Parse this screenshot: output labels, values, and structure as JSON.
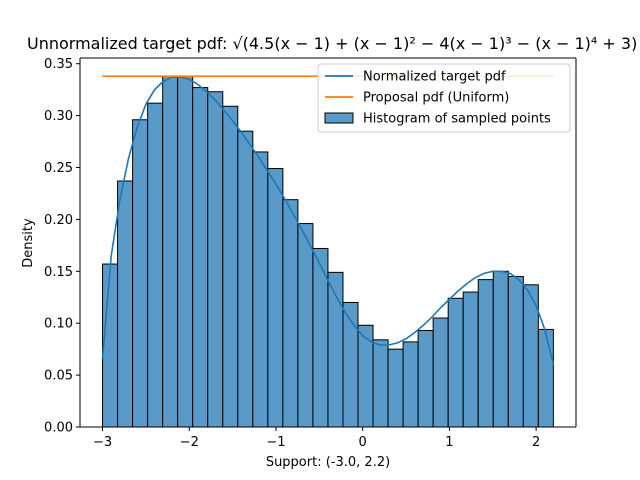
{
  "chart_data": {
    "type": "bar",
    "title_prefix": "Unnormalized target pdf: ",
    "title_formula": "√(4.5(x − 1) + (x − 1)² − 4(x − 1)³ − (x − 1)⁴ + 3)",
    "xlabel": "Support: (-3.0, 2.2)",
    "ylabel": "Density",
    "xlim": [
      -3.26,
      2.46
    ],
    "ylim": [
      0.0,
      0.3555
    ],
    "xticks": [
      -3,
      -2,
      -1,
      0,
      1,
      2
    ],
    "xtick_labels": [
      "−3",
      "−2",
      "−1",
      "0",
      "1",
      "2"
    ],
    "yticks": [
      0.0,
      0.05,
      0.1,
      0.15,
      0.2,
      0.25,
      0.3,
      0.35
    ],
    "ytick_labels": [
      "0.00",
      "0.05",
      "0.10",
      "0.15",
      "0.20",
      "0.25",
      "0.30",
      "0.35"
    ],
    "grid": false,
    "legend_position": "top-right",
    "histogram": {
      "name": "Histogram of sampled points",
      "color": "#5a9ac9",
      "edge_color": "#000000",
      "bin_start": -3.0,
      "bin_width": 0.1733,
      "values": [
        0.157,
        0.237,
        0.296,
        0.312,
        0.338,
        0.338,
        0.327,
        0.323,
        0.309,
        0.285,
        0.265,
        0.249,
        0.219,
        0.196,
        0.172,
        0.149,
        0.12,
        0.098,
        0.084,
        0.075,
        0.082,
        0.093,
        0.105,
        0.124,
        0.13,
        0.142,
        0.15,
        0.145,
        0.137,
        0.094
      ]
    },
    "series": [
      {
        "name": "Normalized target pdf",
        "type": "line",
        "color": "#1f77b4",
        "x": [
          -3.0,
          -2.9,
          -2.8,
          -2.7,
          -2.6,
          -2.5,
          -2.4,
          -2.3,
          -2.2,
          -2.1,
          -2.0,
          -1.9,
          -1.8,
          -1.7,
          -1.6,
          -1.5,
          -1.4,
          -1.3,
          -1.2,
          -1.1,
          -1.0,
          -0.9,
          -0.8,
          -0.7,
          -0.6,
          -0.5,
          -0.4,
          -0.3,
          -0.2,
          -0.1,
          0.0,
          0.1,
          0.2,
          0.3,
          0.4,
          0.5,
          0.6,
          0.7,
          0.8,
          0.9,
          1.0,
          1.1,
          1.2,
          1.3,
          1.4,
          1.5,
          1.6,
          1.7,
          1.8,
          1.9,
          2.0,
          2.1,
          2.2
        ],
        "y": [
          0.066,
          0.165,
          0.219,
          0.259,
          0.289,
          0.311,
          0.325,
          0.333,
          0.337,
          0.337,
          0.335,
          0.33,
          0.323,
          0.315,
          0.305,
          0.295,
          0.284,
          0.272,
          0.26,
          0.247,
          0.234,
          0.22,
          0.205,
          0.19,
          0.174,
          0.158,
          0.141,
          0.125,
          0.11,
          0.098,
          0.088,
          0.082,
          0.079,
          0.079,
          0.081,
          0.085,
          0.091,
          0.098,
          0.106,
          0.115,
          0.123,
          0.131,
          0.138,
          0.144,
          0.148,
          0.15,
          0.15,
          0.148,
          0.142,
          0.132,
          0.117,
          0.094,
          0.06
        ]
      },
      {
        "name": "Proposal pdf (Uniform)",
        "type": "line",
        "color": "#ff7f0e",
        "x": [
          -3.0,
          2.2
        ],
        "y": [
          0.338,
          0.338
        ]
      }
    ]
  }
}
